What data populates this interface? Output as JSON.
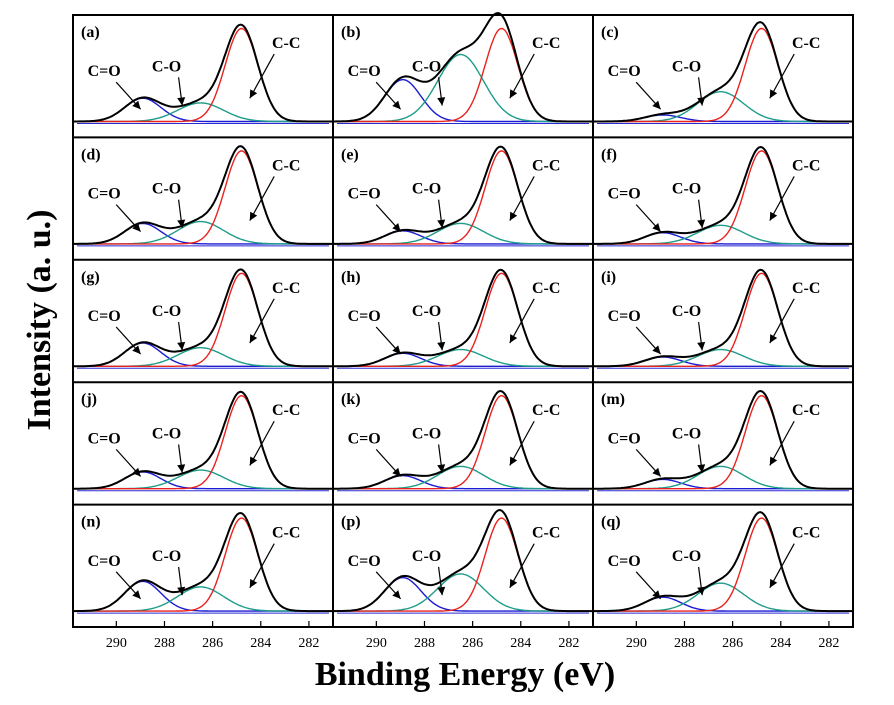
{
  "figure": {
    "ylabel": "Intensity (a. u.)",
    "xlabel": "Binding Energy (eV)",
    "xticks": [
      "290",
      "288",
      "286",
      "284",
      "282"
    ]
  },
  "colors": {
    "envelope": "#000000",
    "cc": "#e8231f",
    "co": "#1f9c89",
    "c_eq_o": "#1b1bd2",
    "baseline": "#2b2bd6"
  },
  "chart_data": {
    "type": "line",
    "xlabel": "Binding Energy (eV)",
    "ylabel": "Intensity (a. u.)",
    "xlim": [
      291.8,
      281.0
    ],
    "x_reversed": true,
    "xticks": [
      290,
      288,
      286,
      284,
      282
    ],
    "peak_centers": {
      "C=O": 288.9,
      "C-O": 286.5,
      "C-C": 284.8
    },
    "series_names": [
      "C=O",
      "C-O",
      "C-C"
    ],
    "panels": [
      {
        "label": "(a)",
        "peaks": {
          "C=O": 0.25,
          "C-O": 0.2,
          "C-C": 1.0
        }
      },
      {
        "label": "(b)",
        "peaks": {
          "C=O": 0.45,
          "C-O": 0.72,
          "C-C": 1.0
        }
      },
      {
        "label": "(c)",
        "peaks": {
          "C=O": 0.07,
          "C-O": 0.32,
          "C-C": 1.0
        }
      },
      {
        "label": "(d)",
        "peaks": {
          "C=O": 0.22,
          "C-O": 0.24,
          "C-C": 1.0
        }
      },
      {
        "label": "(e)",
        "peaks": {
          "C=O": 0.14,
          "C-O": 0.22,
          "C-C": 1.0
        }
      },
      {
        "label": "(f)",
        "peaks": {
          "C=O": 0.12,
          "C-O": 0.2,
          "C-C": 1.0
        }
      },
      {
        "label": "(g)",
        "peaks": {
          "C=O": 0.25,
          "C-O": 0.2,
          "C-C": 1.0
        }
      },
      {
        "label": "(h)",
        "peaks": {
          "C=O": 0.14,
          "C-O": 0.18,
          "C-C": 1.0
        }
      },
      {
        "label": "(i)",
        "peaks": {
          "C=O": 0.1,
          "C-O": 0.18,
          "C-C": 1.0
        }
      },
      {
        "label": "(j)",
        "peaks": {
          "C=O": 0.18,
          "C-O": 0.2,
          "C-C": 1.0
        }
      },
      {
        "label": "(k)",
        "peaks": {
          "C=O": 0.14,
          "C-O": 0.24,
          "C-C": 1.0
        }
      },
      {
        "label": "(m)",
        "peaks": {
          "C=O": 0.1,
          "C-O": 0.24,
          "C-C": 1.0
        }
      },
      {
        "label": "(n)",
        "peaks": {
          "C=O": 0.32,
          "C-O": 0.26,
          "C-C": 1.0
        }
      },
      {
        "label": "(p)",
        "peaks": {
          "C=O": 0.36,
          "C-O": 0.4,
          "C-C": 1.0
        }
      },
      {
        "label": "(q)",
        "peaks": {
          "C=O": 0.15,
          "C-O": 0.3,
          "C-C": 1.0
        }
      }
    ]
  }
}
